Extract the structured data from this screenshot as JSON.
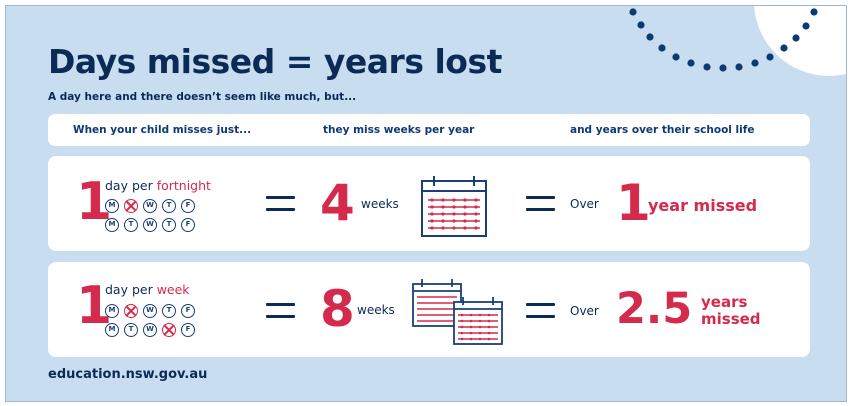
{
  "title": "Days missed = years lost",
  "subtitle": "A day here and there doesn’t seem like much, but...",
  "headers": {
    "col1": "When your child misses just...",
    "col2": "they miss weeks per year",
    "col3": "and years over their school life"
  },
  "rows": [
    {
      "number": "1",
      "label_prefix": "day per ",
      "label_period": "fortnight",
      "days_week1": [
        {
          "letter": "M",
          "missed": false
        },
        {
          "letter": "T",
          "missed": true
        },
        {
          "letter": "W",
          "missed": false
        },
        {
          "letter": "T",
          "missed": false
        },
        {
          "letter": "F",
          "missed": false
        }
      ],
      "days_week2": [
        {
          "letter": "M",
          "missed": false
        },
        {
          "letter": "T",
          "missed": false
        },
        {
          "letter": "W",
          "missed": false
        },
        {
          "letter": "T",
          "missed": false
        },
        {
          "letter": "F",
          "missed": false
        }
      ],
      "weeks_number": "4",
      "weeks_label": "weeks",
      "calendar_icons": [
        "calendar-icon"
      ],
      "over_label": "Over",
      "years_number": "1",
      "years_label": "year missed"
    },
    {
      "number": "1",
      "label_prefix": "day per ",
      "label_period": "week",
      "days_week1": [
        {
          "letter": "M",
          "missed": false
        },
        {
          "letter": "T",
          "missed": true
        },
        {
          "letter": "W",
          "missed": false
        },
        {
          "letter": "T",
          "missed": false
        },
        {
          "letter": "F",
          "missed": false
        }
      ],
      "days_week2": [
        {
          "letter": "M",
          "missed": false
        },
        {
          "letter": "T",
          "missed": false
        },
        {
          "letter": "W",
          "missed": false
        },
        {
          "letter": "T",
          "missed": true
        },
        {
          "letter": "F",
          "missed": false
        }
      ],
      "weeks_number": "8",
      "weeks_label": "weeks",
      "calendar_icons": [
        "calendar-icon",
        "calendar-icon"
      ],
      "over_label": "Over",
      "years_number": "2.5",
      "years_label_line1": "years",
      "years_label_line2": "missed"
    }
  ],
  "footer": "education.nsw.gov.au",
  "colors": {
    "background": "#c9ddf0",
    "navy": "#0b2a55",
    "accent_red": "#d42a4c",
    "card": "#ffffff"
  }
}
